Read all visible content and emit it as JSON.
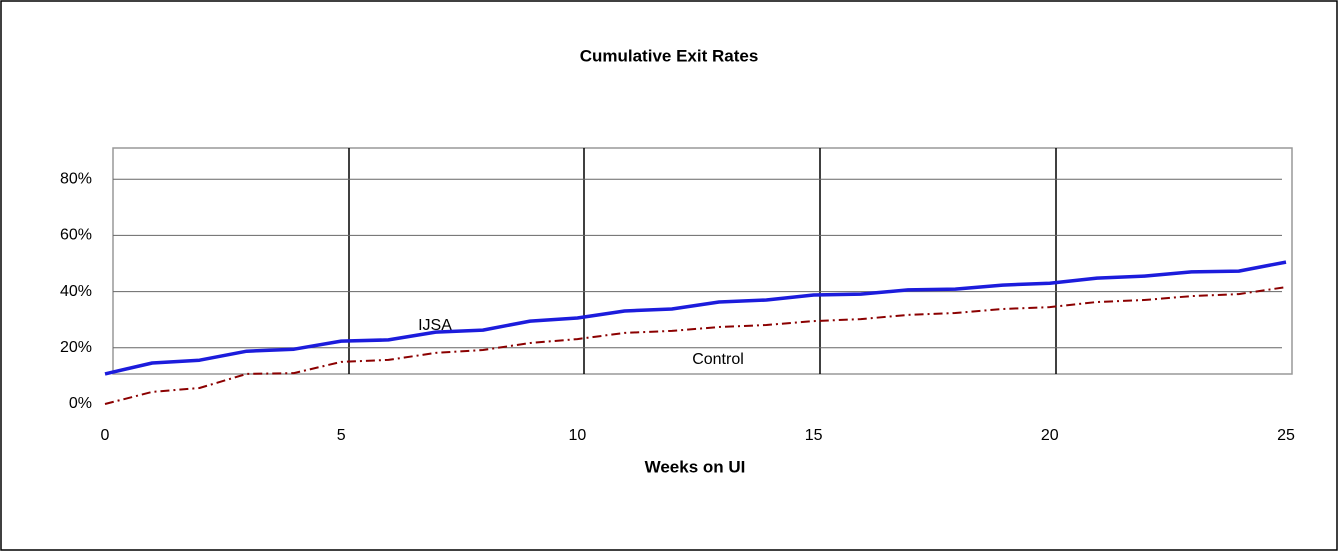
{
  "chart_data": {
    "type": "line",
    "title": "Cumulative Exit Rates",
    "x_label": "Weeks on UI",
    "x": [
      0,
      1,
      2,
      3,
      4,
      5,
      6,
      7,
      8,
      9,
      10,
      11,
      12,
      13,
      14,
      15,
      16,
      17,
      18,
      19,
      20,
      21,
      22,
      23,
      24,
      25
    ],
    "series": [
      {
        "name": "IJSA",
        "color": "#1c1cdc",
        "dash": "solid",
        "values": [
          10.7,
          14.6,
          15.6,
          18.8,
          19.5,
          22.4,
          22.8,
          25.6,
          26.3,
          29.5,
          30.6,
          33.1,
          33.8,
          36.3,
          37,
          38.8,
          39.1,
          40.6,
          40.9,
          42.3,
          43,
          44.8,
          45.5,
          47,
          47.3,
          50.5
        ]
      },
      {
        "name": "Control",
        "color": "#8b0000",
        "dash": "dashdot",
        "values": [
          0,
          4.3,
          5.7,
          10.7,
          11,
          15,
          15.7,
          18.2,
          19.2,
          21.7,
          23.1,
          25.3,
          26,
          27.4,
          28.1,
          29.5,
          30.2,
          31.7,
          32.4,
          33.8,
          34.5,
          36.3,
          37,
          38.4,
          39.1,
          41.6
        ]
      }
    ],
    "xlim": [
      0,
      25
    ],
    "xticks": [
      0,
      5,
      10,
      15,
      20,
      25
    ],
    "ylim": [
      0,
      90
    ],
    "yticks": [
      {
        "value": 0,
        "label": "0%"
      },
      {
        "value": 20,
        "label": "20%"
      },
      {
        "value": 40,
        "label": "40%"
      },
      {
        "value": 60,
        "label": "60%"
      },
      {
        "value": 80,
        "label": "80%"
      }
    ],
    "grid": true
  }
}
